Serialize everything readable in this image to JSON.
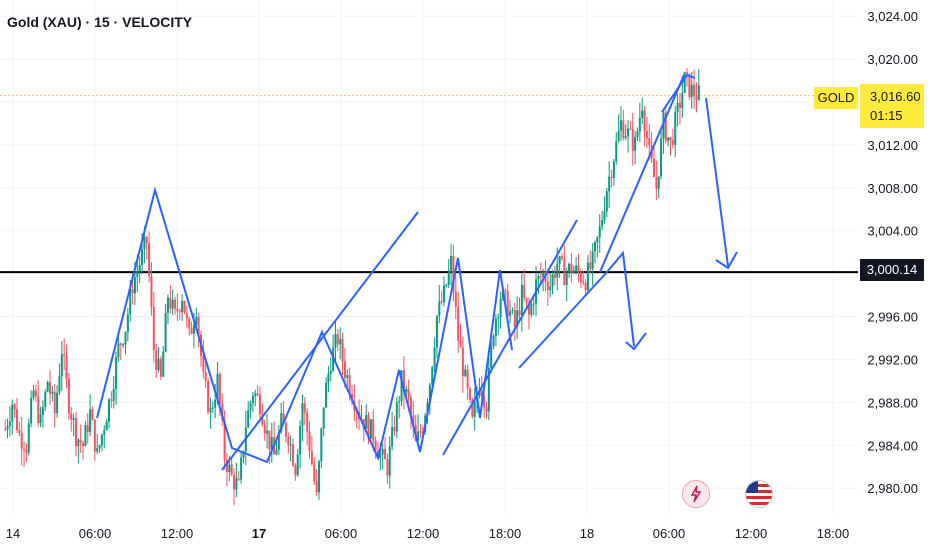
{
  "header": {
    "title": "Gold (XAU) · 15 · VELOCITY"
  },
  "labels": {
    "symbol_tag": "GOLD",
    "last_price": "3,016.60",
    "countdown": "01:15",
    "level_price": "3,000.14"
  },
  "colors": {
    "up": "#089981",
    "down": "#f7525f",
    "drawing": "#2962ff",
    "level": "#000000",
    "tag": "#ffeb3b",
    "grid": "#f0f3fa"
  },
  "icons": [
    "lightning-event-icon",
    "us-flag-event-icon"
  ],
  "chart_data": {
    "type": "candlestick",
    "y_ticks": [
      "3,024.00",
      "3,020.00",
      "3,016.00",
      "3,012.00",
      "3,008.00",
      "3,004.00",
      "3,000.00",
      "2,996.00",
      "2,992.00",
      "2,988.00",
      "2,984.00",
      "2,980.00"
    ],
    "ylim": [
      2977.5,
      3025.5
    ],
    "x_ticks": [
      {
        "label": "14",
        "bold": false
      },
      {
        "label": "06:00",
        "bold": false
      },
      {
        "label": "12:00",
        "bold": false
      },
      {
        "label": "17",
        "bold": true
      },
      {
        "label": "06:00",
        "bold": false
      },
      {
        "label": "12:00",
        "bold": false
      },
      {
        "label": "18:00",
        "bold": false
      },
      {
        "label": "18",
        "bold": false
      },
      {
        "label": "06:00",
        "bold": false
      },
      {
        "label": "12:00",
        "bold": false
      },
      {
        "label": "18:00",
        "bold": false
      }
    ],
    "grid": true,
    "horizontal_level": 3000.14,
    "last_price": 3016.6,
    "price_path": [
      2985.5,
      2988,
      2985,
      2984,
      2989,
      2986,
      2990,
      2987,
      2993,
      2988,
      2985,
      2984,
      2987,
      2983,
      2986,
      2989,
      2993,
      2995,
      2999,
      3001,
      3003,
      2993,
      2990,
      2998,
      2996,
      2998,
      2994,
      2997,
      2990,
      2987,
      2990,
      2983,
      2981,
      2980,
      2986,
      2989,
      2988,
      2985,
      2983,
      2986,
      2985,
      2982,
      2988,
      2984,
      2979,
      2988,
      2992,
      2994,
      2991,
      2989,
      2987,
      2986,
      2985,
      2983,
      2982,
      2986,
      2990,
      2988,
      2984,
      2986,
      2990,
      2996,
      2998,
      3001,
      2994,
      2990,
      2986,
      2990,
      2988,
      2995,
      2998,
      2997,
      2995,
      2998,
      2996,
      2999,
      3000,
      2999,
      3001,
      3000,
      3000.5,
      3000,
      2999.5,
      3001,
      3004,
      3008,
      3011,
      3014,
      3013,
      3012,
      3016,
      3011,
      3008,
      3014,
      3012,
      3015,
      3018,
      3017,
      3016.6
    ]
  }
}
